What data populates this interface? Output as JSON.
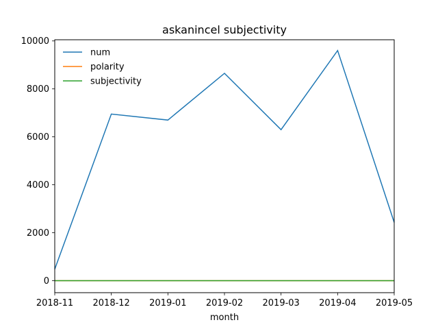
{
  "chart_data": {
    "type": "line",
    "title": "askanincel subjectivity",
    "xlabel": "month",
    "ylabel": "",
    "x": [
      "2018-11",
      "2018-12",
      "2019-01",
      "2019-02",
      "2019-03",
      "2019-04",
      "2019-05"
    ],
    "x_ticks": [
      "2018-11",
      "2018-12",
      "2019-01",
      "2019-02",
      "2019-03",
      "2019-04",
      "2019-05"
    ],
    "y_ticks": [
      0,
      2000,
      4000,
      6000,
      8000,
      10000
    ],
    "xlim": [
      "2018-11",
      "2019-05"
    ],
    "ylim": [
      -500,
      10050
    ],
    "grid": false,
    "legend": "top-left",
    "series": [
      {
        "name": "num",
        "color": "#1f77b4",
        "values": [
          480,
          6950,
          6700,
          8650,
          6300,
          9600,
          2430
        ]
      },
      {
        "name": "polarity",
        "color": "#ff7f0e",
        "values": [
          0,
          0,
          0,
          0,
          0,
          0,
          0
        ]
      },
      {
        "name": "subjectivity",
        "color": "#2ca02c",
        "values": [
          0.5,
          0.5,
          0.5,
          0.5,
          0.5,
          0.5,
          0.5
        ]
      }
    ]
  }
}
